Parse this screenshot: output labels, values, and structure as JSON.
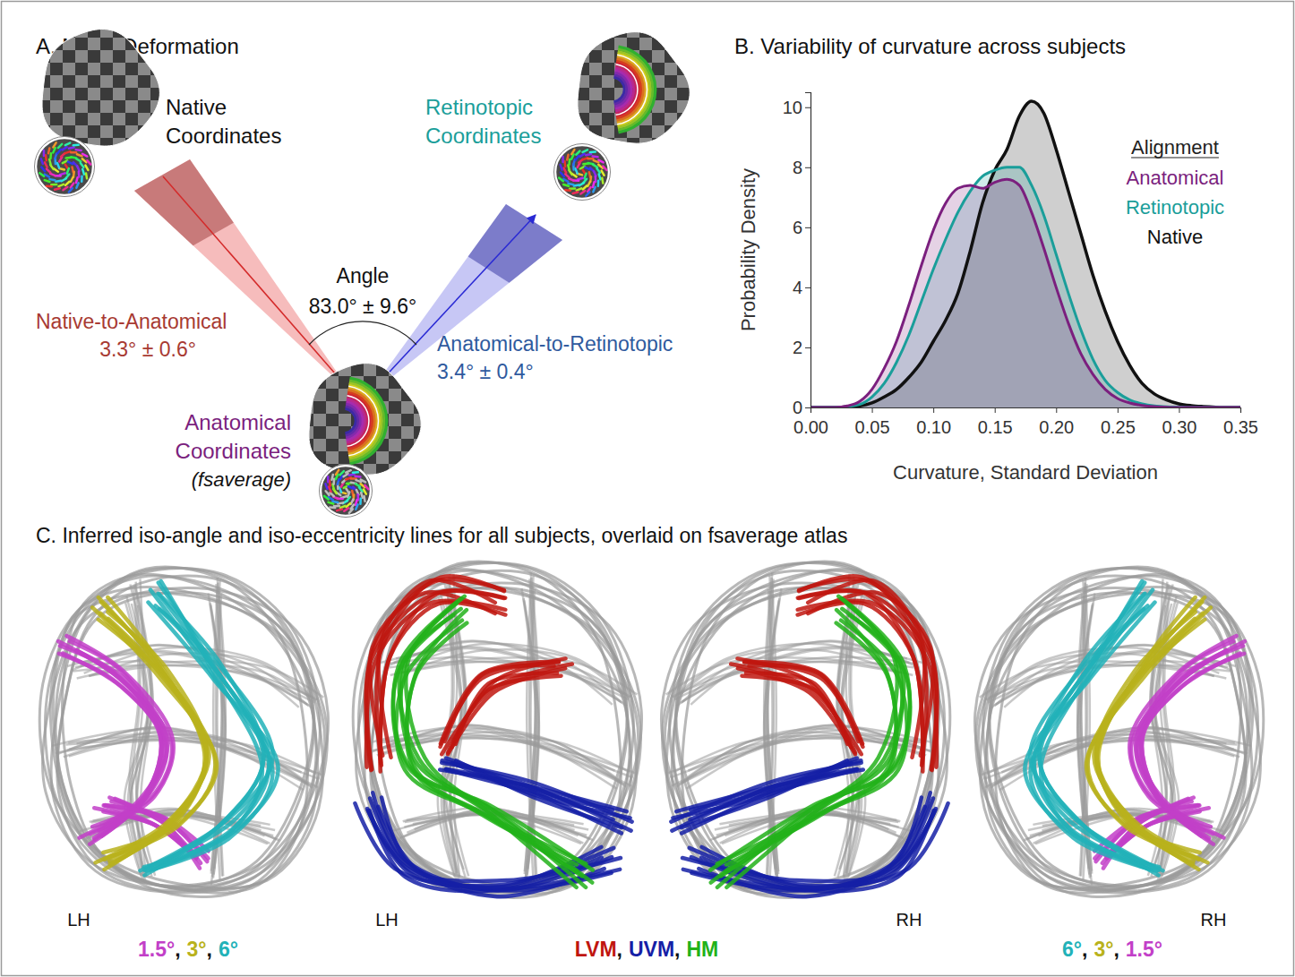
{
  "panel_a": {
    "title": "A. Mean Deformation",
    "nodes": {
      "native": {
        "lines": [
          "Native",
          "Coordinates"
        ],
        "color": "#111111"
      },
      "retinotopic": {
        "lines": [
          "Retinotopic",
          "Coordinates"
        ],
        "color": "#1a9e9a"
      },
      "anatomical": {
        "lines": [
          "Anatomical",
          "Coordinates"
        ],
        "note": "(fsaverage)",
        "color": "#7b1f7e"
      }
    },
    "edges": [
      {
        "label": "Native-to-Anatomical",
        "value": "3.3° ± 0.6°",
        "color": "#a83a32"
      },
      {
        "label": "Anatomical-to-Retinotopic",
        "value": "3.4° ± 0.4°",
        "color": "#2f5a9e"
      }
    ],
    "angle": {
      "label": "Angle",
      "value": "83.0° ± 9.6°"
    }
  },
  "chart_data": {
    "type": "area",
    "title": "B. Variability of curvature across subjects",
    "x_label": "Curvature, Standard Deviation",
    "y_label": "Probability Density",
    "legend_title": "Alignment",
    "legend": "top-right",
    "grid": false,
    "x": [
      0,
      0.01,
      0.02,
      0.03,
      0.04,
      0.05,
      0.06,
      0.07,
      0.08,
      0.09,
      0.1,
      0.11,
      0.12,
      0.13,
      0.14,
      0.15,
      0.16,
      0.17,
      0.18,
      0.19,
      0.2,
      0.21,
      0.22,
      0.23,
      0.24,
      0.25,
      0.26,
      0.27,
      0.28,
      0.29,
      0.3,
      0.31,
      0.32,
      0.33,
      0.34,
      0.35
    ],
    "series": [
      {
        "name": "Anatomical",
        "color": "#7b1f7e",
        "values": [
          0,
          0,
          0,
          0.05,
          0.2,
          0.6,
          1.3,
          2.2,
          3.4,
          4.7,
          5.9,
          6.8,
          7.3,
          7.4,
          7.3,
          7.5,
          7.6,
          7.4,
          6.5,
          5.3,
          4.0,
          2.8,
          1.8,
          1.1,
          0.6,
          0.3,
          0.15,
          0.07,
          0.03,
          0.01,
          0,
          0,
          0,
          0,
          0,
          0
        ]
      },
      {
        "name": "Retinotopic",
        "color": "#1a9e9a",
        "values": [
          0,
          0,
          0,
          0.03,
          0.1,
          0.35,
          0.8,
          1.5,
          2.4,
          3.5,
          4.6,
          5.6,
          6.5,
          7.2,
          7.7,
          7.9,
          8.0,
          8.0,
          7.4,
          6.4,
          5.1,
          3.8,
          2.6,
          1.6,
          0.9,
          0.5,
          0.25,
          0.12,
          0.05,
          0.02,
          0.01,
          0,
          0,
          0,
          0,
          0
        ]
      },
      {
        "name": "Native",
        "color": "#111111",
        "values": [
          0,
          0,
          0,
          0.02,
          0.05,
          0.15,
          0.35,
          0.6,
          1.0,
          1.5,
          2.2,
          2.9,
          3.8,
          5.2,
          6.8,
          7.9,
          8.6,
          9.7,
          10.2,
          9.8,
          8.6,
          7.2,
          5.8,
          4.4,
          3.2,
          2.2,
          1.4,
          0.8,
          0.45,
          0.25,
          0.12,
          0.06,
          0.03,
          0.01,
          0,
          0
        ]
      }
    ],
    "xlim": [
      0,
      0.35
    ],
    "ylim": [
      0,
      10.5
    ],
    "xticks": [
      {
        "value": 0,
        "label": "0.00"
      },
      {
        "value": 0.05,
        "label": "0.05"
      },
      {
        "value": 0.1,
        "label": "0.10"
      },
      {
        "value": 0.15,
        "label": "0.15"
      },
      {
        "value": 0.2,
        "label": "0.20"
      },
      {
        "value": 0.25,
        "label": "0.25"
      },
      {
        "value": 0.3,
        "label": "0.30"
      },
      {
        "value": 0.35,
        "label": "0.35"
      }
    ],
    "yticks": [
      0,
      2,
      4,
      6,
      8,
      10
    ]
  },
  "panel_c": {
    "title": "C. Inferred iso-angle and iso-eccentricity lines for all subjects, overlaid on fsaverage atlas",
    "plots": [
      {
        "hemisphere": "LH"
      },
      {
        "hemisphere": "LH"
      },
      {
        "hemisphere": "RH"
      },
      {
        "hemisphere": "RH"
      }
    ],
    "legends": [
      {
        "items": [
          {
            "text": "1.5°",
            "color": "#c23fc8"
          },
          {
            "text": "3°",
            "color": "#b9b21c"
          },
          {
            "text": "6°",
            "color": "#22b2b8"
          }
        ]
      },
      {
        "items": [
          {
            "text": "LVM",
            "color": "#c0160f"
          },
          {
            "text": "UVM",
            "color": "#1520a6"
          },
          {
            "text": "HM",
            "color": "#22b21a"
          }
        ]
      },
      {
        "items": [
          {
            "text": "6°",
            "color": "#22b2b8"
          },
          {
            "text": "3°",
            "color": "#b9b21c"
          },
          {
            "text": "1.5°",
            "color": "#c23fc8"
          }
        ]
      }
    ],
    "separator": ","
  }
}
